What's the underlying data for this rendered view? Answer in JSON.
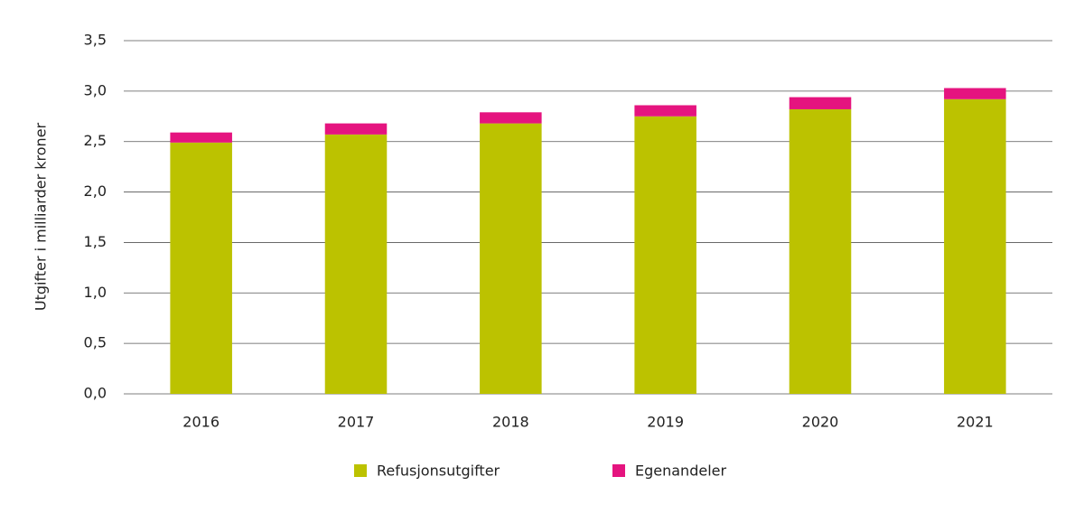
{
  "chart_data": {
    "type": "stacked-bar",
    "y_label": "Utgifter i milliarder kroner",
    "categories": [
      "2016",
      "2017",
      "2018",
      "2019",
      "2020",
      "2021"
    ],
    "series": [
      {
        "name": "Refusjonsutgifter",
        "color": "#bcc200",
        "values": [
          2.49,
          2.57,
          2.68,
          2.75,
          2.82,
          2.92
        ]
      },
      {
        "name": "Egenandeler",
        "color": "#e5147f",
        "values": [
          0.1,
          0.11,
          0.11,
          0.11,
          0.12,
          0.11
        ]
      }
    ],
    "ylim": [
      0,
      3.5
    ],
    "yticks": [
      {
        "value": 0,
        "label": "0,0"
      },
      {
        "value": 0.5,
        "label": "0,5"
      },
      {
        "value": 1,
        "label": "1,0"
      },
      {
        "value": 1.5,
        "label": "1,5"
      },
      {
        "value": 2,
        "label": "2,0"
      },
      {
        "value": 2.5,
        "label": "2,5"
      },
      {
        "value": 3,
        "label": "3,0"
      },
      {
        "value": 3.5,
        "label": "3,5"
      }
    ],
    "grid": true
  }
}
